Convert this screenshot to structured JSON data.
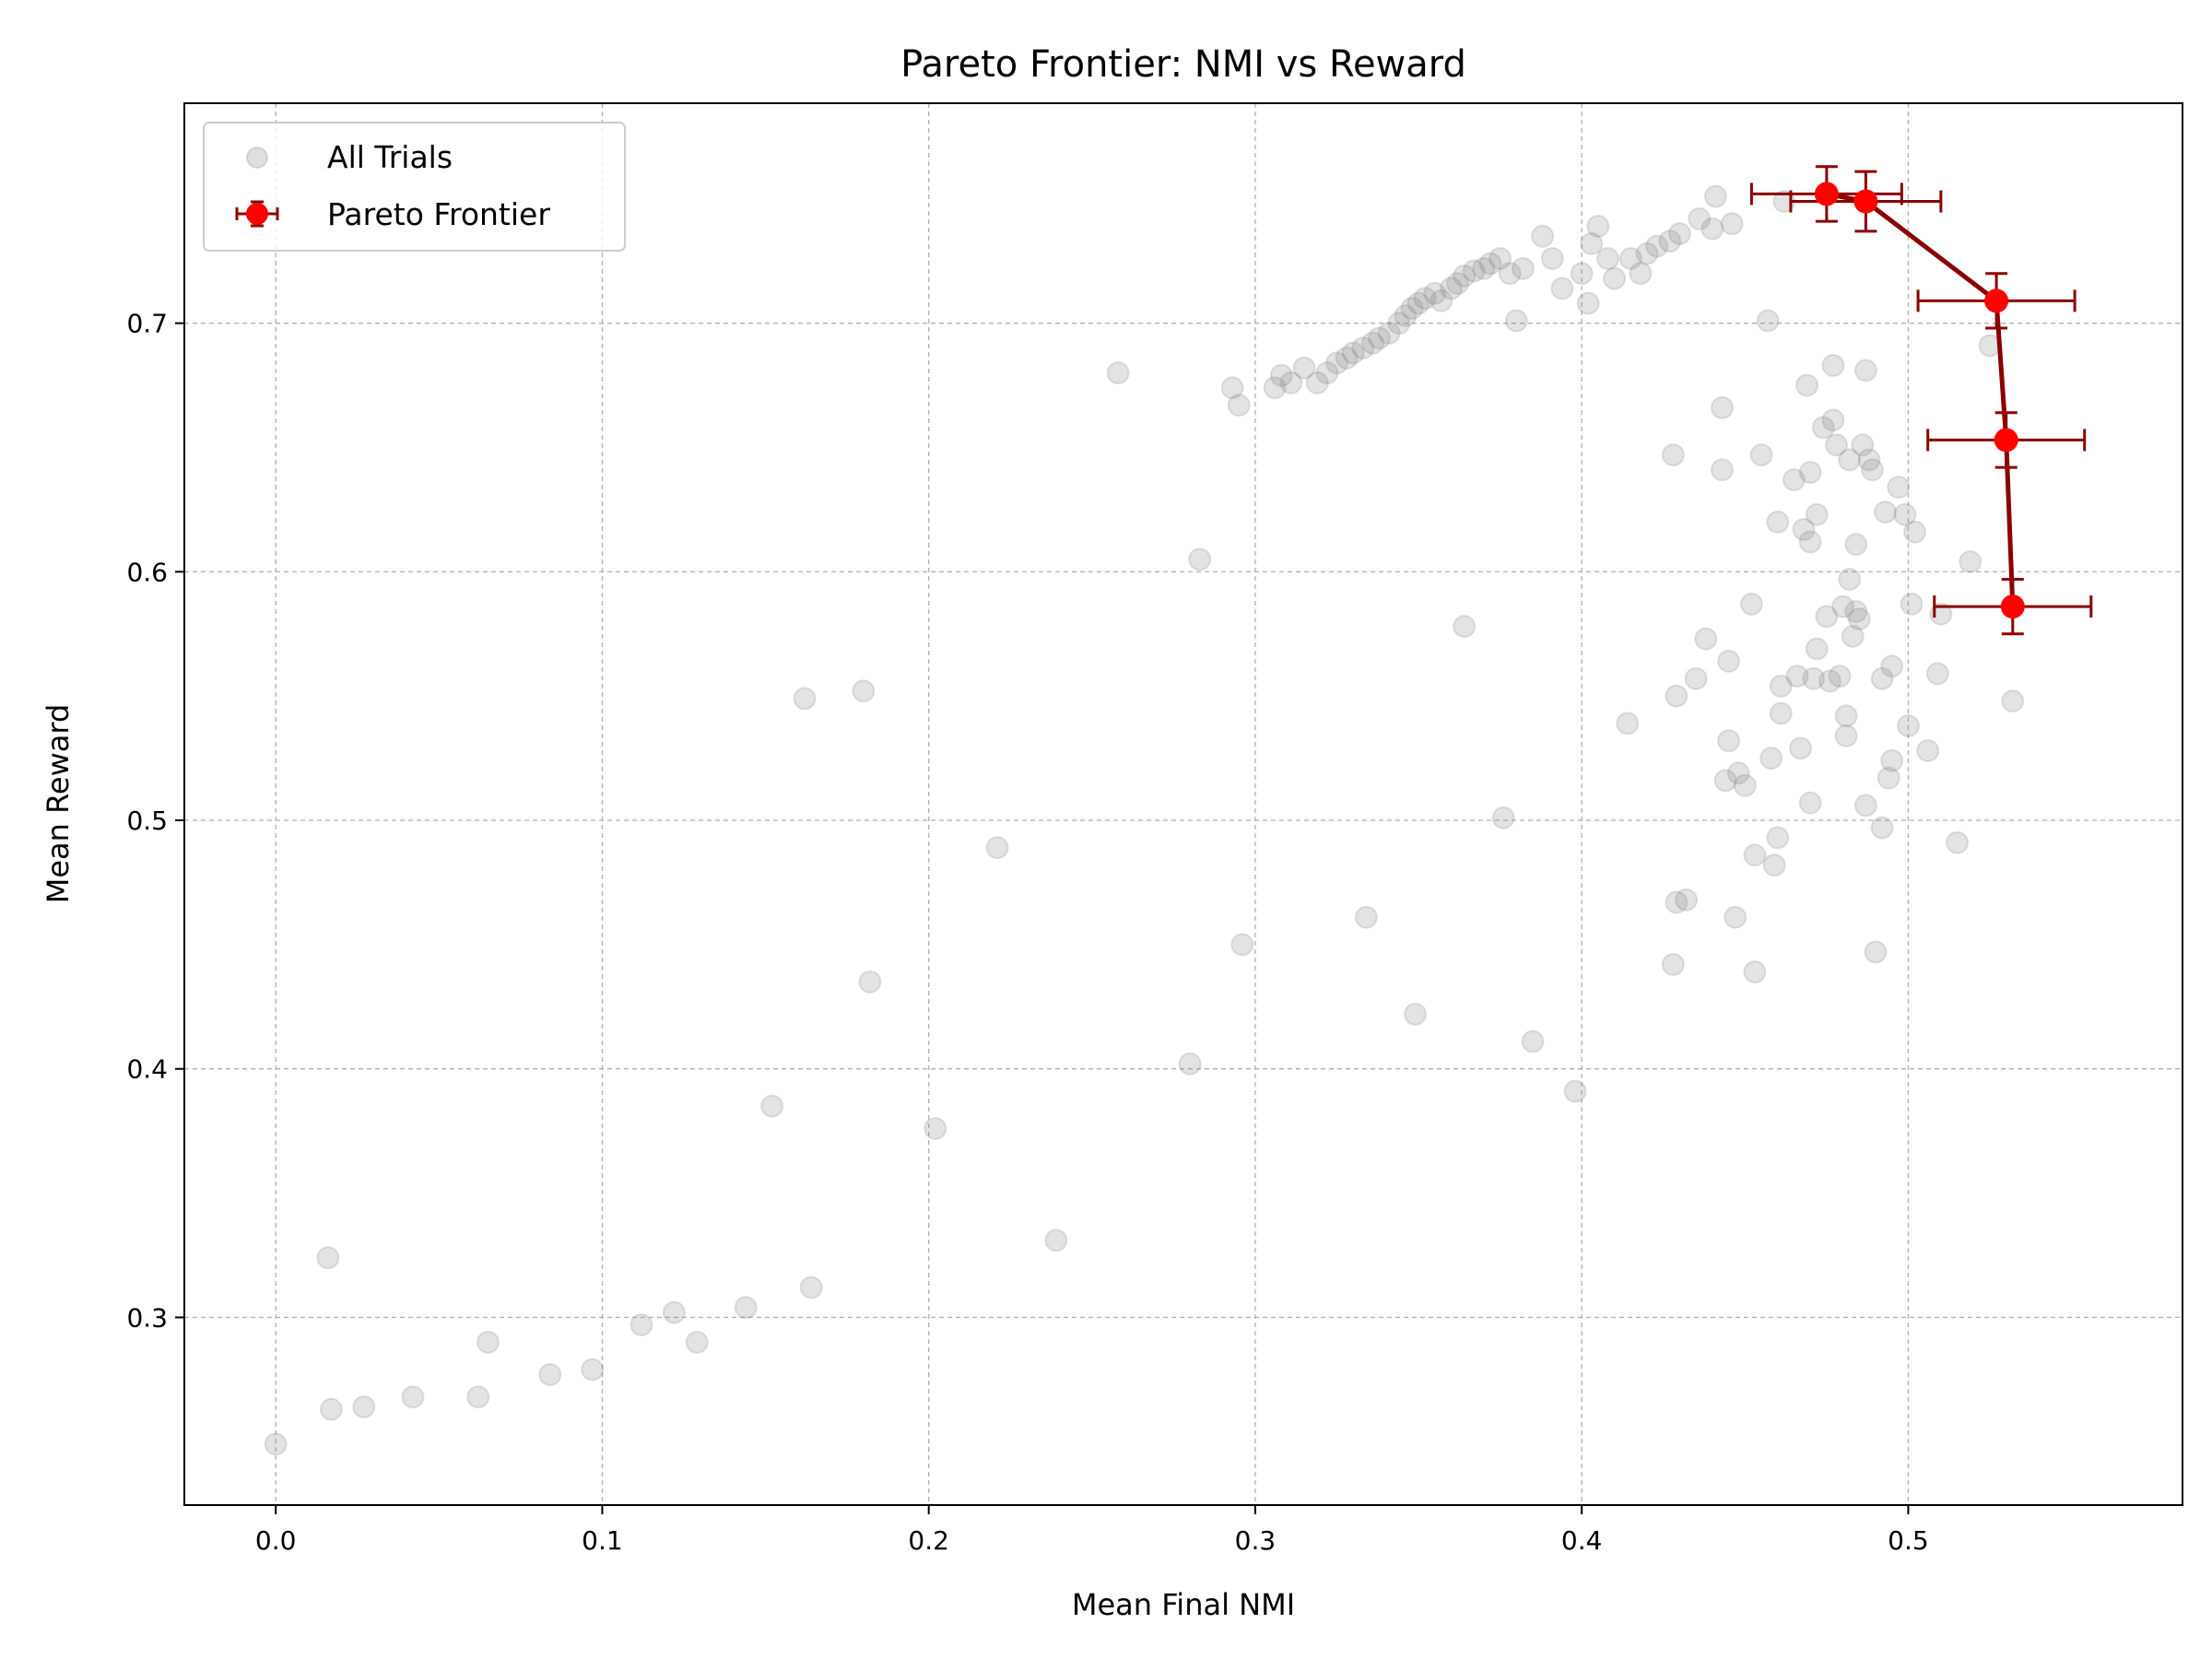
{
  "chart_data": {
    "type": "scatter",
    "title": "Pareto Frontier: NMI vs Reward",
    "xlabel": "Mean Final NMI",
    "ylabel": "Mean Reward",
    "xlim": [
      -0.028,
      0.584
    ],
    "ylim": [
      0.2245,
      0.7885
    ],
    "xticks": [
      0.0,
      0.1,
      0.2,
      0.3,
      0.4,
      0.5
    ],
    "xtick_labels": [
      "0.0",
      "0.1",
      "0.2",
      "0.3",
      "0.4",
      "0.5"
    ],
    "yticks": [
      0.3,
      0.4,
      0.5,
      0.6,
      0.7
    ],
    "ytick_labels": [
      "0.3",
      "0.4",
      "0.5",
      "0.6",
      "0.7"
    ],
    "grid": true,
    "legend_position": "top-left",
    "series": [
      {
        "name": "All Trials",
        "kind": "scatter",
        "color": "#808080",
        "points": [
          [
            0.0,
            0.249
          ],
          [
            0.016,
            0.324
          ],
          [
            0.017,
            0.263
          ],
          [
            0.027,
            0.264
          ],
          [
            0.042,
            0.268
          ],
          [
            0.062,
            0.268
          ],
          [
            0.065,
            0.29
          ],
          [
            0.084,
            0.277
          ],
          [
            0.097,
            0.279
          ],
          [
            0.112,
            0.297
          ],
          [
            0.122,
            0.302
          ],
          [
            0.129,
            0.29
          ],
          [
            0.144,
            0.304
          ],
          [
            0.152,
            0.385
          ],
          [
            0.162,
            0.549
          ],
          [
            0.164,
            0.312
          ],
          [
            0.18,
            0.552
          ],
          [
            0.182,
            0.435
          ],
          [
            0.202,
            0.376
          ],
          [
            0.221,
            0.489
          ],
          [
            0.239,
            0.331
          ],
          [
            0.258,
            0.68
          ],
          [
            0.28,
            0.402
          ],
          [
            0.283,
            0.605
          ],
          [
            0.293,
            0.674
          ],
          [
            0.295,
            0.667
          ],
          [
            0.296,
            0.45
          ],
          [
            0.306,
            0.674
          ],
          [
            0.308,
            0.679
          ],
          [
            0.311,
            0.676
          ],
          [
            0.315,
            0.682
          ],
          [
            0.319,
            0.676
          ],
          [
            0.322,
            0.68
          ],
          [
            0.325,
            0.684
          ],
          [
            0.328,
            0.686
          ],
          [
            0.33,
            0.688
          ],
          [
            0.333,
            0.69
          ],
          [
            0.334,
            0.461
          ],
          [
            0.336,
            0.692
          ],
          [
            0.338,
            0.694
          ],
          [
            0.341,
            0.696
          ],
          [
            0.344,
            0.7
          ],
          [
            0.346,
            0.703
          ],
          [
            0.348,
            0.706
          ],
          [
            0.349,
            0.422
          ],
          [
            0.35,
            0.708
          ],
          [
            0.352,
            0.71
          ],
          [
            0.355,
            0.712
          ],
          [
            0.357,
            0.709
          ],
          [
            0.36,
            0.714
          ],
          [
            0.362,
            0.716
          ],
          [
            0.364,
            0.719
          ],
          [
            0.364,
            0.578
          ],
          [
            0.367,
            0.721
          ],
          [
            0.37,
            0.722
          ],
          [
            0.372,
            0.724
          ],
          [
            0.375,
            0.726
          ],
          [
            0.376,
            0.501
          ],
          [
            0.378,
            0.72
          ],
          [
            0.38,
            0.701
          ],
          [
            0.382,
            0.722
          ],
          [
            0.385,
            0.411
          ],
          [
            0.388,
            0.735
          ],
          [
            0.391,
            0.726
          ],
          [
            0.394,
            0.714
          ],
          [
            0.398,
            0.391
          ],
          [
            0.4,
            0.72
          ],
          [
            0.402,
            0.708
          ],
          [
            0.403,
            0.732
          ],
          [
            0.405,
            0.739
          ],
          [
            0.408,
            0.726
          ],
          [
            0.41,
            0.718
          ],
          [
            0.414,
            0.539
          ],
          [
            0.415,
            0.726
          ],
          [
            0.418,
            0.72
          ],
          [
            0.42,
            0.728
          ],
          [
            0.423,
            0.731
          ],
          [
            0.427,
            0.733
          ],
          [
            0.428,
            0.647
          ],
          [
            0.428,
            0.442
          ],
          [
            0.429,
            0.55
          ],
          [
            0.429,
            0.467
          ],
          [
            0.43,
            0.736
          ],
          [
            0.432,
            0.468
          ],
          [
            0.435,
            0.557
          ],
          [
            0.436,
            0.742
          ],
          [
            0.438,
            0.573
          ],
          [
            0.44,
            0.738
          ],
          [
            0.441,
            0.751
          ],
          [
            0.443,
            0.666
          ],
          [
            0.443,
            0.641
          ],
          [
            0.444,
            0.516
          ],
          [
            0.445,
            0.532
          ],
          [
            0.445,
            0.564
          ],
          [
            0.446,
            0.74
          ],
          [
            0.447,
            0.461
          ],
          [
            0.448,
            0.519
          ],
          [
            0.45,
            0.514
          ],
          [
            0.452,
            0.587
          ],
          [
            0.453,
            0.486
          ],
          [
            0.453,
            0.439
          ],
          [
            0.455,
            0.647
          ],
          [
            0.457,
            0.701
          ],
          [
            0.458,
            0.525
          ],
          [
            0.459,
            0.482
          ],
          [
            0.46,
            0.62
          ],
          [
            0.46,
            0.493
          ],
          [
            0.461,
            0.554
          ],
          [
            0.461,
            0.543
          ],
          [
            0.462,
            0.749
          ],
          [
            0.465,
            0.637
          ],
          [
            0.466,
            0.558
          ],
          [
            0.467,
            0.529
          ],
          [
            0.468,
            0.617
          ],
          [
            0.469,
            0.675
          ],
          [
            0.47,
            0.64
          ],
          [
            0.47,
            0.507
          ],
          [
            0.47,
            0.612
          ],
          [
            0.471,
            0.557
          ],
          [
            0.472,
            0.569
          ],
          [
            0.472,
            0.623
          ],
          [
            0.474,
            0.658
          ],
          [
            0.475,
            0.582
          ],
          [
            0.476,
            0.556
          ],
          [
            0.477,
            0.683
          ],
          [
            0.477,
            0.661
          ],
          [
            0.478,
            0.651
          ],
          [
            0.479,
            0.558
          ],
          [
            0.48,
            0.586
          ],
          [
            0.481,
            0.542
          ],
          [
            0.481,
            0.534
          ],
          [
            0.482,
            0.645
          ],
          [
            0.482,
            0.597
          ],
          [
            0.483,
            0.574
          ],
          [
            0.484,
            0.611
          ],
          [
            0.484,
            0.584
          ],
          [
            0.485,
            0.581
          ],
          [
            0.486,
            0.651
          ],
          [
            0.487,
            0.681
          ],
          [
            0.487,
            0.506
          ],
          [
            0.488,
            0.645
          ],
          [
            0.489,
            0.641
          ],
          [
            0.49,
            0.447
          ],
          [
            0.492,
            0.557
          ],
          [
            0.492,
            0.497
          ],
          [
            0.493,
            0.624
          ],
          [
            0.494,
            0.517
          ],
          [
            0.495,
            0.524
          ],
          [
            0.495,
            0.562
          ],
          [
            0.497,
            0.634
          ],
          [
            0.499,
            0.623
          ],
          [
            0.5,
            0.538
          ],
          [
            0.501,
            0.587
          ],
          [
            0.502,
            0.616
          ],
          [
            0.506,
            0.528
          ],
          [
            0.509,
            0.559
          ],
          [
            0.51,
            0.583
          ],
          [
            0.515,
            0.491
          ],
          [
            0.519,
            0.604
          ],
          [
            0.525,
            0.691
          ],
          [
            0.532,
            0.548
          ]
        ]
      },
      {
        "name": "Pareto Frontier",
        "kind": "errorbar",
        "color": "#ff0000",
        "line_color": "#8b0000",
        "points": [
          {
            "x": 0.475,
            "y": 0.752,
            "xerr": 0.023,
            "yerr": 0.011
          },
          {
            "x": 0.487,
            "y": 0.749,
            "xerr": 0.023,
            "yerr": 0.012
          },
          {
            "x": 0.527,
            "y": 0.709,
            "xerr": 0.024,
            "yerr": 0.011
          },
          {
            "x": 0.53,
            "y": 0.653,
            "xerr": 0.024,
            "yerr": 0.011
          },
          {
            "x": 0.532,
            "y": 0.586,
            "xerr": 0.024,
            "yerr": 0.011
          }
        ]
      }
    ]
  }
}
